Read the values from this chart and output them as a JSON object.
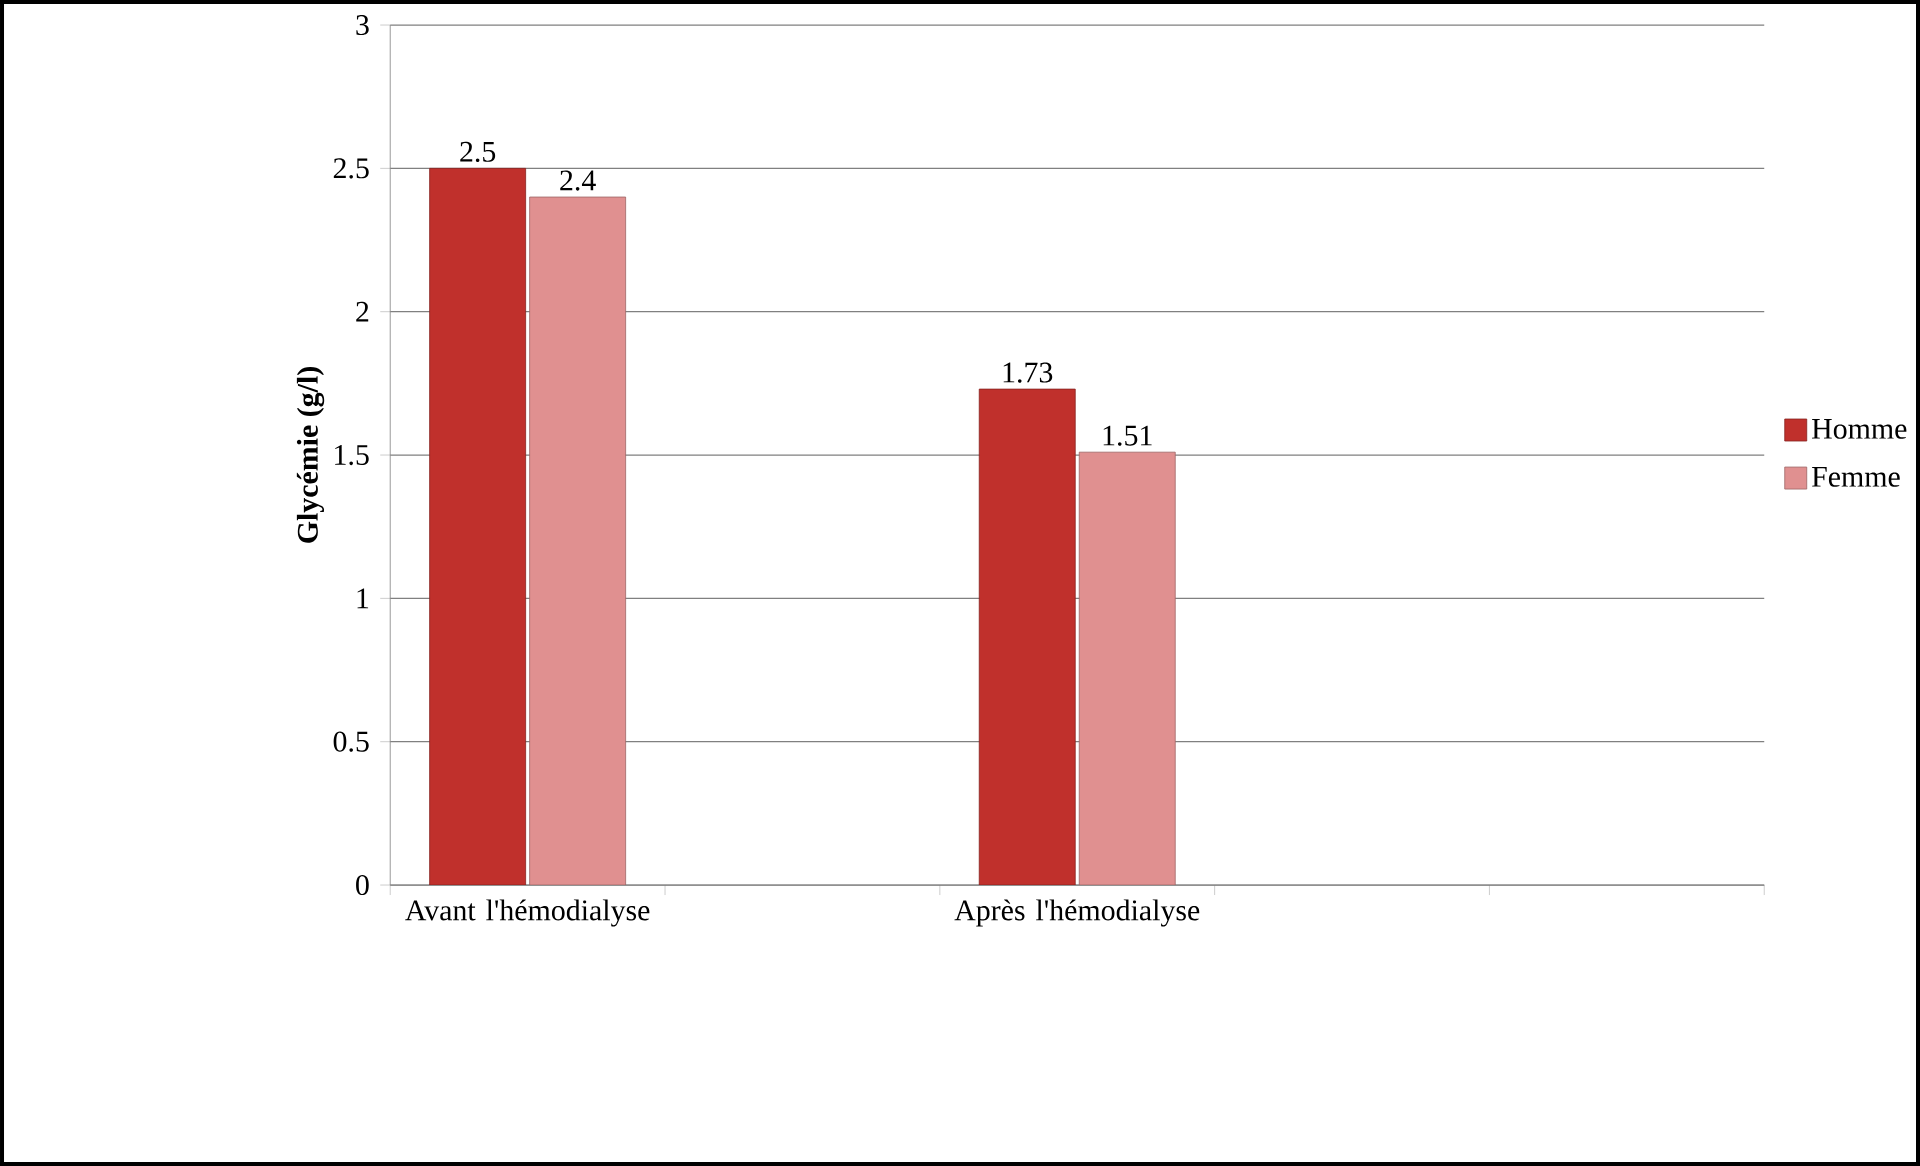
{
  "chart_data": {
    "type": "bar",
    "ylabel": "Glycémie (g/l)",
    "categories": [
      "Avant l'hémodialyse",
      null,
      "Après l'hémodialyse",
      null,
      null
    ],
    "series": [
      {
        "name": "Homme",
        "color": "#c0302c",
        "values": [
          2.5,
          null,
          1.73,
          null,
          null
        ]
      },
      {
        "name": "Femme",
        "color": "#e09090",
        "values": [
          2.4,
          null,
          1.51,
          null,
          null
        ]
      }
    ],
    "ylim": [
      0,
      3
    ],
    "yticks": [
      0,
      0.5,
      1,
      1.5,
      2,
      2.5,
      3
    ],
    "grid": "y",
    "legend": "right",
    "data_labels": true
  }
}
